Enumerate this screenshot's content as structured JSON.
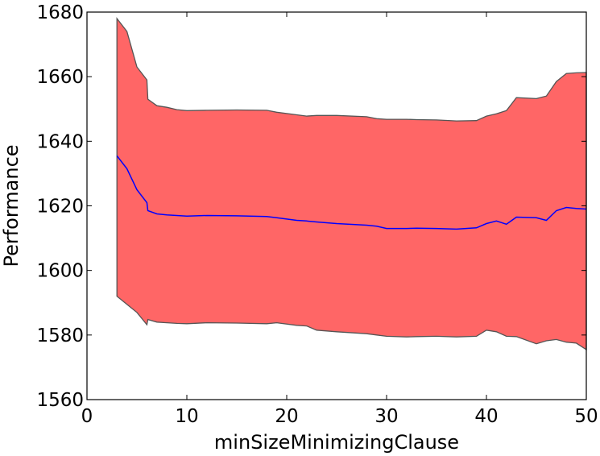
{
  "chart_data": {
    "type": "area",
    "title": "",
    "xlabel": "minSizeMinimizingClause",
    "ylabel": "Performance",
    "xlim": [
      0,
      50
    ],
    "ylim": [
      1560,
      1680
    ],
    "xticks": [
      0,
      10,
      20,
      30,
      40,
      50
    ],
    "yticks": [
      1560,
      1580,
      1600,
      1620,
      1640,
      1660,
      1680
    ],
    "grid": false,
    "legend": "none",
    "colors": {
      "band_fill": "#ff6666",
      "band_edge": "#555555",
      "mean_line": "#0000ff"
    },
    "x": [
      3,
      4,
      5,
      6,
      6.1,
      7,
      8,
      9,
      10,
      12,
      15,
      18,
      19,
      21,
      22,
      23,
      25,
      28,
      29,
      30,
      32,
      33,
      35,
      37,
      39,
      40,
      41,
      42,
      43,
      45,
      46,
      47,
      48,
      49,
      50
    ],
    "upper": [
      1678,
      1674,
      1663,
      1659,
      1653,
      1651,
      1650.5,
      1649.8,
      1649.5,
      1649.6,
      1649.7,
      1649.6,
      1649.0,
      1648.2,
      1647.8,
      1648.0,
      1648.0,
      1647.6,
      1647.0,
      1646.8,
      1646.8,
      1646.7,
      1646.6,
      1646.3,
      1646.4,
      1647.8,
      1648.5,
      1649.5,
      1653.5,
      1653.2,
      1654,
      1658.5,
      1661,
      1661.2,
      1661.3
    ],
    "mean": [
      1635.5,
      1631.5,
      1625,
      1621,
      1618.5,
      1617.5,
      1617.2,
      1617.0,
      1616.8,
      1617.0,
      1616.9,
      1616.7,
      1616.3,
      1615.5,
      1615.3,
      1615.0,
      1614.5,
      1614.0,
      1613.7,
      1613.0,
      1613.0,
      1613.1,
      1613.0,
      1612.8,
      1613.2,
      1614.5,
      1615.3,
      1614.3,
      1616.5,
      1616.3,
      1615.5,
      1618.5,
      1619.5,
      1619.2,
      1619.0
    ],
    "lower": [
      1592,
      1589.5,
      1587,
      1583.2,
      1584.8,
      1584.0,
      1583.8,
      1583.6,
      1583.5,
      1583.8,
      1583.7,
      1583.5,
      1583.8,
      1583.0,
      1582.8,
      1581.5,
      1581.0,
      1580.4,
      1580.0,
      1579.6,
      1579.4,
      1579.5,
      1579.6,
      1579.4,
      1579.6,
      1581.5,
      1581.0,
      1579.6,
      1579.5,
      1577.3,
      1578.2,
      1578.6,
      1577.8,
      1577.5,
      1575.5
    ]
  }
}
